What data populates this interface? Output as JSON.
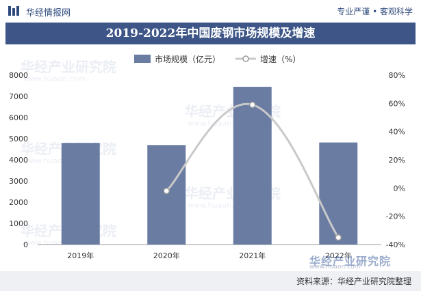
{
  "header": {
    "brand": "华经情报网",
    "slogan": "专业严谨 • 客观科学"
  },
  "title": "2019-2022年中国废钢市场规模及增速",
  "source": "资料来源：华经产业研究院整理",
  "watermark": {
    "name": "华经产业研究院",
    "url": "www.huaon.com"
  },
  "colors": {
    "bar": "#6b7ca3",
    "line": "#c9c9c9",
    "title_bg": "#3e5687",
    "brand": "#2e4a7d"
  },
  "chart_data": {
    "type": "bar",
    "categories": [
      "2019年",
      "2020年",
      "2021年",
      "2022年"
    ],
    "series": [
      {
        "name": "市场规模（亿元）",
        "type": "bar",
        "axis": "left",
        "values": [
          4800,
          4700,
          7450,
          4820
        ]
      },
      {
        "name": "增速（%）",
        "type": "line",
        "axis": "right",
        "values": [
          null,
          -2,
          59,
          -35
        ]
      }
    ],
    "left_axis": {
      "min": 0,
      "max": 8000,
      "ticks": [
        "0",
        "1000",
        "2000",
        "3000",
        "4000",
        "5000",
        "6000",
        "7000",
        "8000"
      ]
    },
    "right_axis": {
      "min": -40,
      "max": 80,
      "ticks": [
        "-40%",
        "-20%",
        "0%",
        "20%",
        "40%",
        "60%",
        "80%"
      ]
    },
    "legend_position": "top-center",
    "grid": false
  }
}
